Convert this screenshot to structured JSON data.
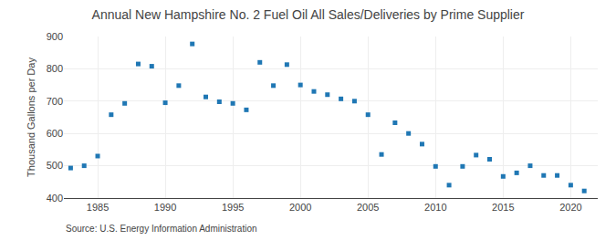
{
  "chart_data": {
    "type": "scatter",
    "title": "Annual New Hampshire No. 2 Fuel Oil All Sales/Deliveries by Prime Supplier",
    "ylabel": "Thousand Gallons per Day",
    "annotations": [
      "Source: U.S. Energy Information Administration"
    ],
    "x": [
      1983,
      1984,
      1985,
      1986,
      1987,
      1988,
      1989,
      1990,
      1991,
      1992,
      1993,
      1994,
      1995,
      1996,
      1997,
      1998,
      1999,
      2000,
      2001,
      2002,
      2003,
      2004,
      2005,
      2006,
      2007,
      2008,
      2009,
      2010,
      2011,
      2012,
      2013,
      2014,
      2015,
      2016,
      2017,
      2018,
      2019,
      2020,
      2021
    ],
    "values": [
      493,
      500,
      530,
      658,
      693,
      815,
      808,
      695,
      748,
      877,
      713,
      698,
      693,
      673,
      820,
      748,
      813,
      750,
      730,
      720,
      707,
      700,
      658,
      535,
      633,
      600,
      567,
      498,
      440,
      498,
      533,
      520,
      467,
      478,
      500,
      470,
      470,
      440,
      422
    ],
    "marker": "square",
    "xlim": [
      1982.5,
      2022
    ],
    "xticks": [
      1985,
      1990,
      1995,
      2000,
      2005,
      2010,
      2015,
      2020
    ],
    "ylim": [
      400,
      900
    ],
    "yticks": [
      400,
      500,
      600,
      700,
      800,
      900
    ],
    "grid": true
  }
}
